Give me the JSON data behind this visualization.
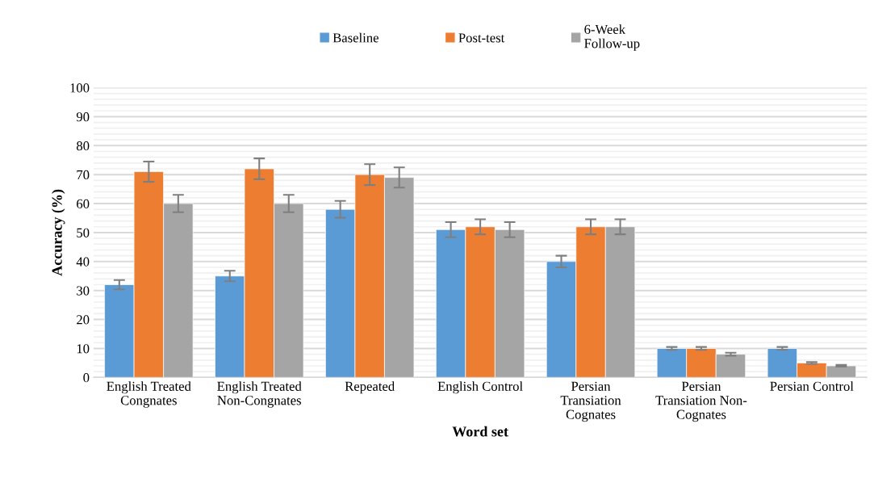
{
  "chart_data": {
    "type": "bar",
    "xlabel": "Word set",
    "ylabel": "Accuracy (%)",
    "categories": [
      "English Treated\nCongnates",
      "English Treated\nNon-Congnates",
      "Repeated",
      "English Control",
      "Persian\nTransiation\nCognates",
      "Persian\nTransiation Non-\nCognates",
      "Persian Control"
    ],
    "series": [
      {
        "name": "Baseline",
        "color": "#5b9bd5",
        "values": [
          32,
          35,
          58,
          51,
          40,
          10,
          10
        ],
        "errors": [
          1.6,
          1.8,
          2.9,
          2.6,
          2,
          0.5,
          0.5
        ]
      },
      {
        "name": "Post-test",
        "color": "#ed7d31",
        "values": [
          71,
          72,
          70,
          52,
          52,
          10,
          5
        ],
        "errors": [
          3.5,
          3.6,
          3.6,
          2.6,
          2.6,
          0.5,
          0.3
        ]
      },
      {
        "name": "6-Week\nFollow-up",
        "color": "#a5a5a5",
        "values": [
          60,
          60,
          69,
          51,
          52,
          8,
          4
        ],
        "errors": [
          3,
          3,
          3.5,
          2.6,
          2.6,
          0.5,
          0.3
        ]
      }
    ],
    "ylim": [
      0,
      100
    ],
    "yticks": [
      0,
      {
        "value": 2,
        "label": null
      },
      {
        "value": 4,
        "label": null
      },
      {
        "value": 6,
        "label": null
      },
      {
        "value": 8,
        "label": null
      },
      10,
      {
        "value": 12,
        "label": null
      },
      {
        "value": 14,
        "label": null
      },
      {
        "value": 16,
        "label": null
      },
      {
        "value": 18,
        "label": null
      },
      20,
      {
        "value": 22,
        "label": null
      },
      {
        "value": 24,
        "label": null
      },
      {
        "value": 26,
        "label": null
      },
      {
        "value": 28,
        "label": null
      },
      30,
      {
        "value": 32,
        "label": null
      },
      {
        "value": 34,
        "label": null
      },
      {
        "value": 36,
        "label": null
      },
      {
        "value": 38,
        "label": null
      },
      40,
      {
        "value": 42,
        "label": null
      },
      {
        "value": 44,
        "label": null
      },
      {
        "value": 46,
        "label": null
      },
      {
        "value": 48,
        "label": null
      },
      50,
      {
        "value": 52,
        "label": null
      },
      {
        "value": 54,
        "label": null
      },
      {
        "value": 56,
        "label": null
      },
      {
        "value": 58,
        "label": null
      },
      60,
      {
        "value": 62,
        "label": null
      },
      {
        "value": 64,
        "label": null
      },
      {
        "value": 66,
        "label": null
      },
      {
        "value": 68,
        "label": null
      },
      70,
      {
        "value": 72,
        "label": null
      },
      {
        "value": 74,
        "label": null
      },
      {
        "value": 76,
        "label": null
      },
      {
        "value": 78,
        "label": null
      },
      80,
      {
        "value": 82,
        "label": null
      },
      {
        "value": 84,
        "label": null
      },
      {
        "value": 86,
        "label": null
      },
      {
        "value": 88,
        "label": null
      },
      90,
      {
        "value": 92,
        "label": null
      },
      {
        "value": 94,
        "label": null
      },
      {
        "value": 96,
        "label": null
      },
      {
        "value": 98,
        "label": null
      },
      100
    ],
    "grid": "y",
    "legend": "top"
  }
}
